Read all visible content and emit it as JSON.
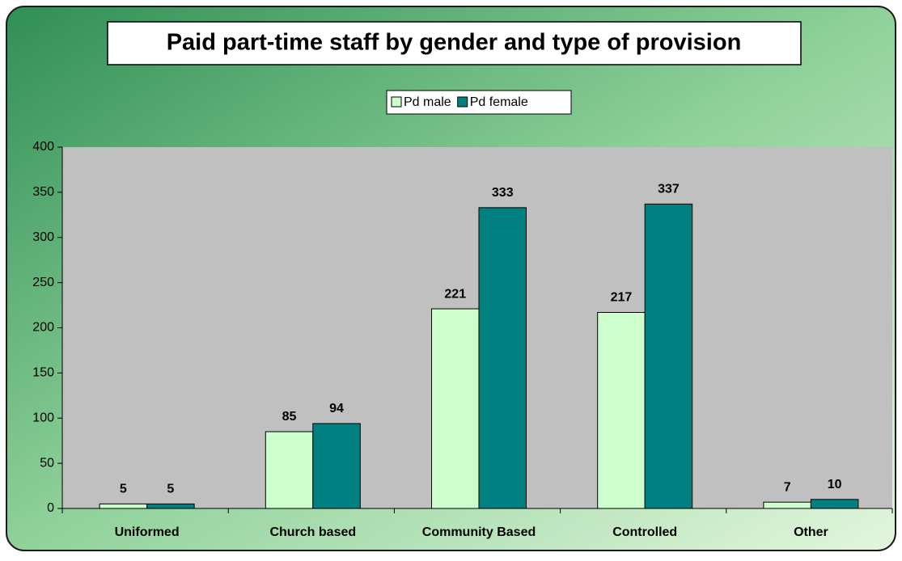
{
  "chart_data": {
    "type": "bar",
    "title": "Paid part-time staff by gender and type of provision",
    "categories": [
      "Uniformed",
      "Church based",
      "Community Based",
      "Controlled",
      "Other"
    ],
    "series": [
      {
        "name": "Pd male",
        "color": "#ccffcc",
        "values": [
          5,
          85,
          221,
          217,
          7
        ]
      },
      {
        "name": "Pd female",
        "color": "#008080",
        "values": [
          5,
          94,
          333,
          337,
          10
        ]
      }
    ],
    "ylim": [
      0,
      400
    ],
    "yticks": [
      0,
      50,
      100,
      150,
      200,
      250,
      300,
      350,
      400
    ],
    "legend": "top",
    "grid": false
  }
}
